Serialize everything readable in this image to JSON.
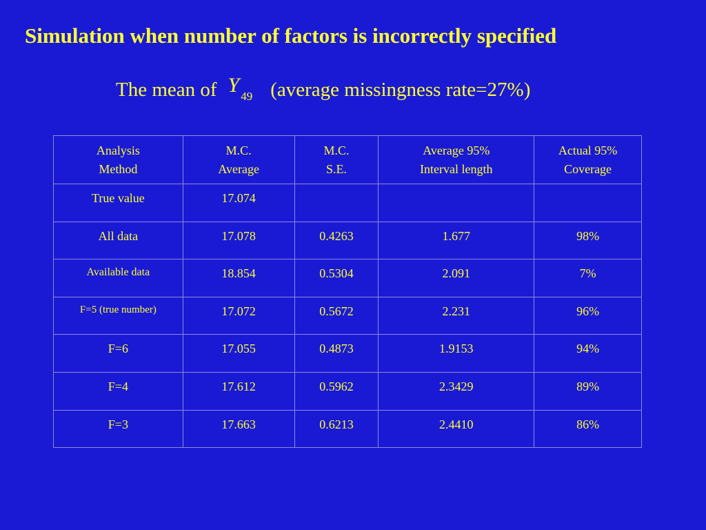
{
  "slide": {
    "title": "Simulation when number of factors is incorrectly specified",
    "subtitle_prefix": "The mean of",
    "subtitle_symbol": "Y",
    "subtitle_subscript": "49",
    "subtitle_suffix": "(average missingness rate=27%)"
  },
  "table": {
    "headers": [
      {
        "line1": "Analysis",
        "line2": "Method"
      },
      {
        "line1": "M.C.",
        "line2": "Average"
      },
      {
        "line1": "M.C.",
        "line2": "S.E."
      },
      {
        "line1": "Average 95%",
        "line2": "Interval length"
      },
      {
        "line1": "Actual 95%",
        "line2": "Coverage"
      }
    ],
    "rows": [
      {
        "method": "True value",
        "average": "17.074",
        "se": "",
        "interval": "",
        "coverage": ""
      },
      {
        "method": "All data",
        "average": "17.078",
        "se": "0.4263",
        "interval": "1.677",
        "coverage": "98%"
      },
      {
        "method": "Available data",
        "average": "18.854",
        "se": "0.5304",
        "interval": "2.091",
        "coverage": "7%"
      },
      {
        "method": "F=5 (true number)",
        "average": "17.072",
        "se": "0.5672",
        "interval": "2.231",
        "coverage": "96%"
      },
      {
        "method": "F=6",
        "average": "17.055",
        "se": "0.4873",
        "interval": "1.9153",
        "coverage": "94%"
      },
      {
        "method": "F=4",
        "average": "17.612",
        "se": "0.5962",
        "interval": "2.3429",
        "coverage": "89%"
      },
      {
        "method": "F=3",
        "average": "17.663",
        "se": "0.6213",
        "interval": "2.4410",
        "coverage": "86%"
      }
    ]
  },
  "colors": {
    "background": "#1a1ad4",
    "text": "#ffff33",
    "grid": "#8a8ae0"
  }
}
